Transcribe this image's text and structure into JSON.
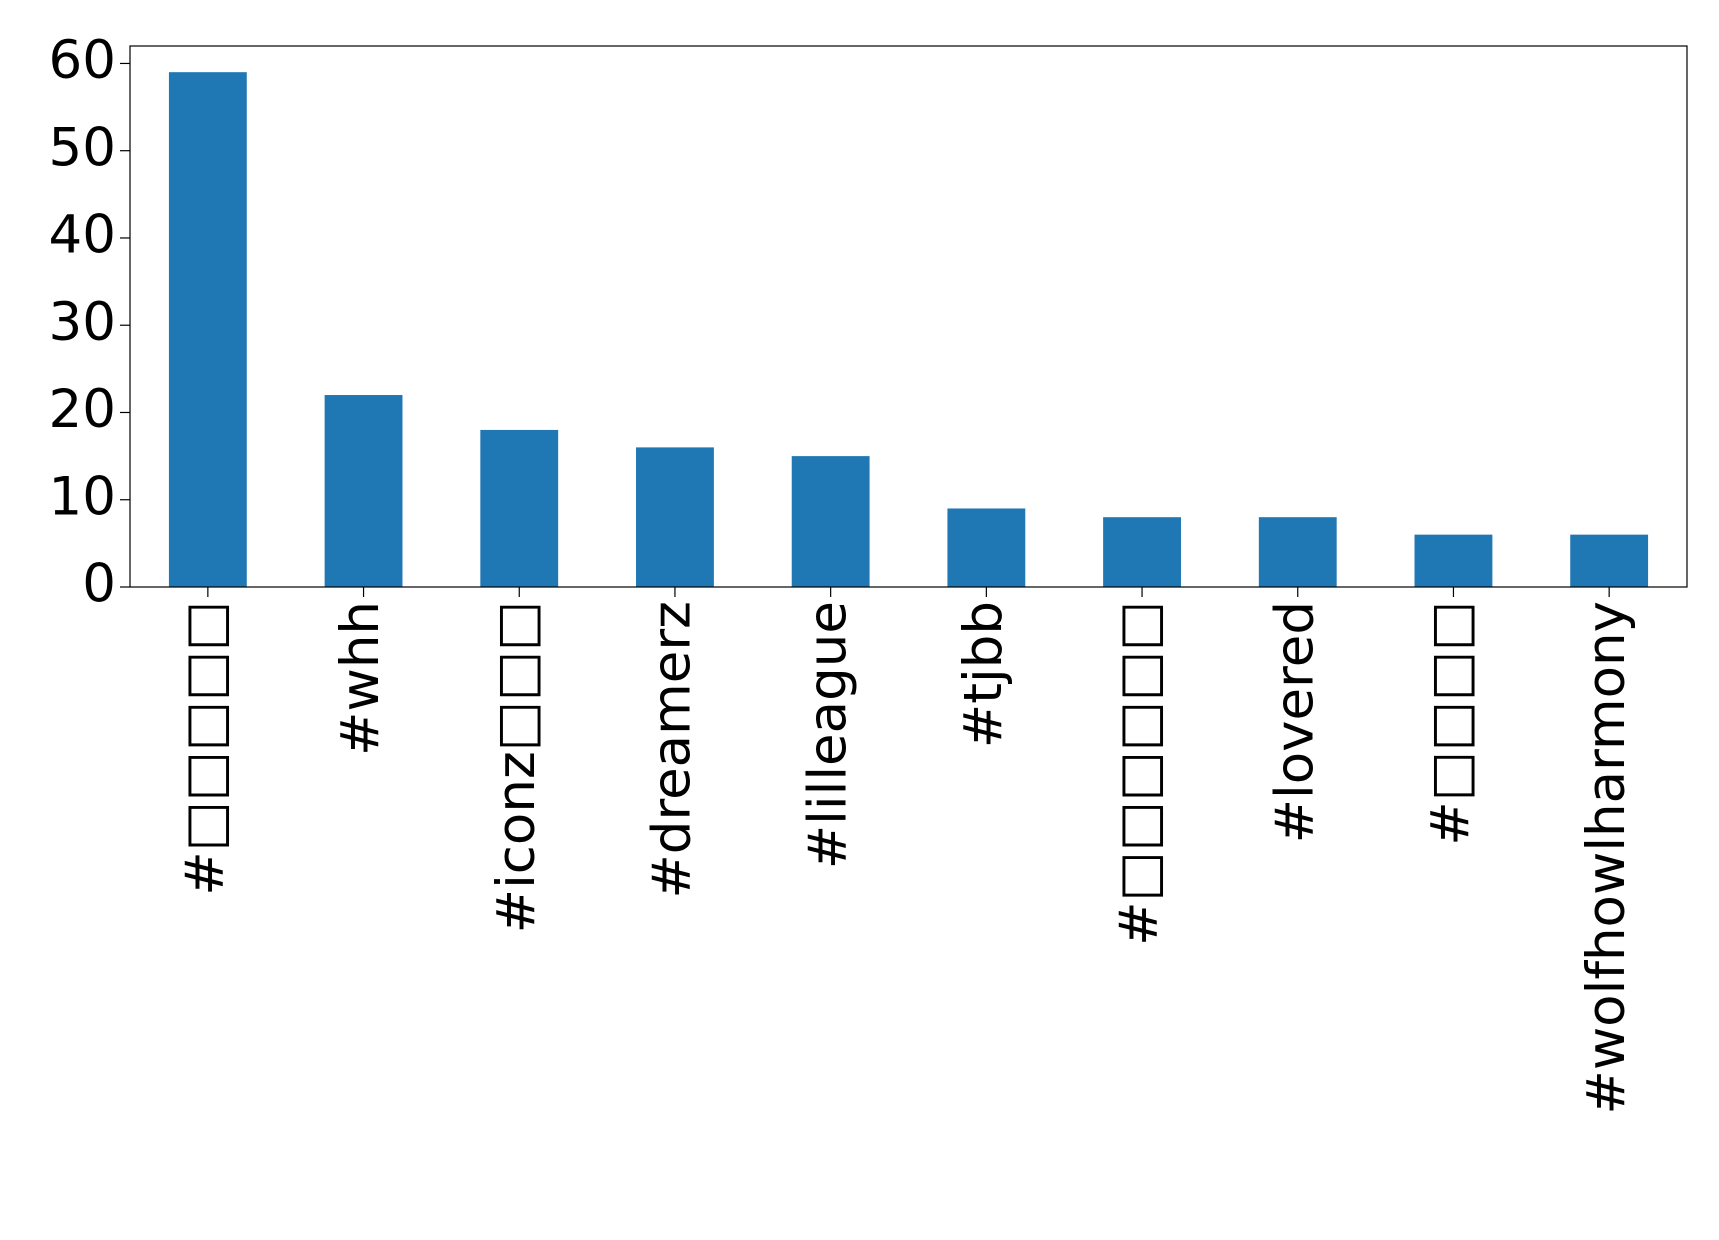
{
  "chart_data": {
    "type": "bar",
    "categories": [
      "#□□□□□",
      "#whh",
      "#iconz□□□",
      "#dreamerz",
      "#lilleague",
      "#tjbb",
      "#□□□□□□",
      "#lovered",
      "#□□□□",
      "#wolfhowlharmony"
    ],
    "values": [
      59,
      22,
      18,
      16,
      15,
      9,
      8,
      8,
      6,
      6
    ],
    "color": "#1f77b4",
    "ylim": [
      0,
      62
    ],
    "yticks": [
      0,
      10,
      20,
      30,
      40,
      50,
      60
    ],
    "grid": false
  }
}
